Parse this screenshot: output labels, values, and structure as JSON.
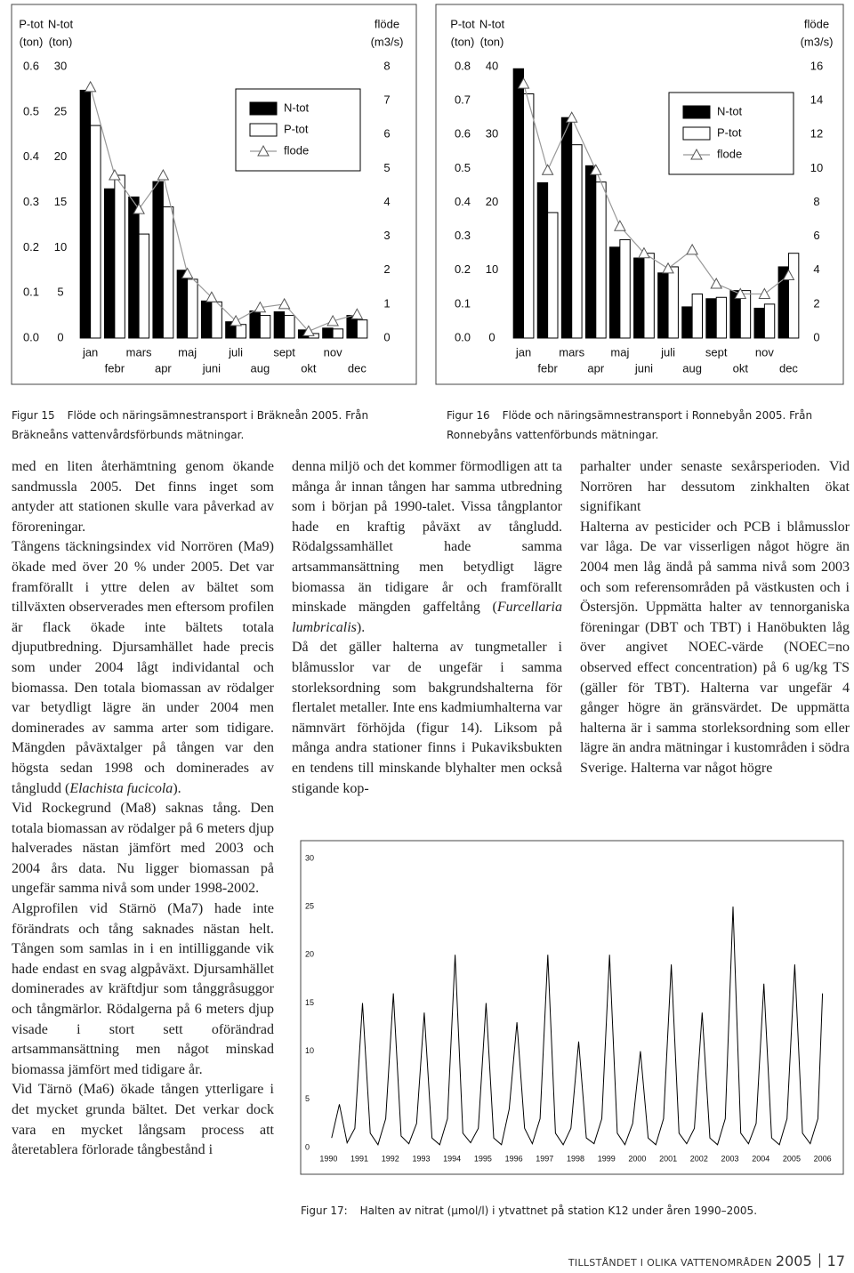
{
  "chart_data": [
    {
      "type": "bar",
      "categories": [
        "jan",
        "febr",
        "mars",
        "apr",
        "maj",
        "juni",
        "juli",
        "aug",
        "sept",
        "okt",
        "nov",
        "dec"
      ],
      "series": [
        {
          "name": "N-tot",
          "color": "#000000",
          "axis": "y2",
          "values": [
            27.4,
            16.5,
            15.6,
            17.3,
            7.5,
            4.1,
            1.8,
            3.0,
            2.9,
            0.9,
            1.1,
            2.5
          ]
        },
        {
          "name": "P-tot",
          "color": "#ffffff",
          "axis": "y",
          "values": [
            0.47,
            0.36,
            0.23,
            0.29,
            0.13,
            0.08,
            0.03,
            0.05,
            0.05,
            0.01,
            0.02,
            0.04
          ]
        },
        {
          "name": "flode",
          "color": "#999999",
          "axis": "y3",
          "type": "line",
          "marker": "triangle",
          "values": [
            7.4,
            4.8,
            3.8,
            4.8,
            1.9,
            1.2,
            0.5,
            0.9,
            1.0,
            0.2,
            0.5,
            0.7
          ]
        }
      ],
      "y_title": [
        "P-tot",
        "(ton)"
      ],
      "ylim": [
        0,
        0.6
      ],
      "yticks": [
        {
          "value": 0,
          "label": "0.0"
        },
        0.1,
        0.2,
        0.3,
        0.4,
        0.5,
        0.6
      ],
      "y2_title": [
        "N-tot",
        "(ton)"
      ],
      "y2lim": [
        0,
        30
      ],
      "y2ticks": [
        0,
        5,
        10,
        15,
        20,
        25,
        30
      ],
      "y3_title": [
        "flöde",
        "(m3/s)"
      ],
      "y3lim": [
        0,
        8
      ],
      "y3ticks": [
        0,
        1,
        2,
        3,
        4,
        5,
        6,
        7,
        8
      ],
      "figure": "Figur 15",
      "caption": "Flöde och näringsämnestransport i Bräkneån 2005. Från Bräkneåns vattenvårdsförbunds mätningar."
    },
    {
      "type": "bar",
      "categories": [
        "jan",
        "febr",
        "mars",
        "apr",
        "maj",
        "juni",
        "juli",
        "aug",
        "sept",
        "okt",
        "nov",
        "dec"
      ],
      "series": [
        {
          "name": "N-tot",
          "color": "#000000",
          "axis": "y2",
          "values": [
            39.7,
            22.9,
            32.5,
            25.4,
            13.4,
            11.8,
            9.6,
            4.6,
            5.8,
            7.0,
            4.4,
            10.5
          ]
        },
        {
          "name": "P-tot",
          "color": "#ffffff",
          "axis": "y",
          "values": [
            0.72,
            0.37,
            0.57,
            0.46,
            0.29,
            0.25,
            0.21,
            0.13,
            0.12,
            0.14,
            0.1,
            0.25
          ]
        },
        {
          "name": "flode",
          "color": "#999999",
          "axis": "y3",
          "type": "line",
          "marker": "triangle",
          "values": [
            15.0,
            9.9,
            13.0,
            9.9,
            6.6,
            5.0,
            4.1,
            5.2,
            3.2,
            2.6,
            2.6,
            3.7
          ]
        }
      ],
      "y_title": [
        "P-tot",
        "(ton)"
      ],
      "ylim": [
        0,
        0.8
      ],
      "yticks": [
        {
          "value": 0,
          "label": "0.0"
        },
        0.1,
        0.2,
        0.3,
        0.4,
        0.5,
        0.6,
        0.7,
        0.8
      ],
      "y2_title": [
        "N-tot",
        "(ton)"
      ],
      "y2lim": [
        0,
        40
      ],
      "y2ticks": [
        0,
        10,
        20,
        30,
        40
      ],
      "y3_title": [
        "flöde",
        "(m3/s)"
      ],
      "y3lim": [
        0,
        16
      ],
      "y3ticks": [
        0,
        2,
        4,
        6,
        8,
        10,
        12,
        14,
        16
      ],
      "figure": "Figur 16",
      "caption": "Flöde och näringsämnestransport i Ronnebyån 2005. Från Ronnebyåns vattenförbunds mätningar."
    },
    {
      "type": "line",
      "color": "#000000",
      "x": [
        1990.1,
        1990.35,
        1990.6,
        1990.85,
        1991.1,
        1991.35,
        1991.6,
        1991.85,
        1992.1,
        1992.35,
        1992.6,
        1992.85,
        1993.1,
        1993.35,
        1993.6,
        1993.85,
        1994.1,
        1994.35,
        1994.6,
        1994.85,
        1995.1,
        1995.35,
        1995.6,
        1995.85,
        1996.1,
        1996.35,
        1996.6,
        1996.85,
        1997.1,
        1997.35,
        1997.6,
        1997.85,
        1998.1,
        1998.35,
        1998.6,
        1998.85,
        1999.1,
        1999.35,
        1999.6,
        1999.85,
        2000.1,
        2000.35,
        2000.6,
        2000.85,
        2001.1,
        2001.35,
        2001.6,
        2001.85,
        2002.1,
        2002.35,
        2002.6,
        2002.85,
        2003.1,
        2003.35,
        2003.6,
        2003.85,
        2004.1,
        2004.35,
        2004.6,
        2004.85,
        2005.1,
        2005.35,
        2005.6,
        2005.85,
        2006.0
      ],
      "values": [
        1,
        4.5,
        0.5,
        2,
        15,
        1.5,
        0.3,
        3,
        16,
        1.2,
        0.4,
        2.5,
        14,
        1,
        0.3,
        3,
        20,
        1.5,
        0.5,
        2,
        15,
        1,
        0.3,
        4,
        13,
        2,
        0.4,
        3,
        20,
        1.5,
        0.3,
        2,
        11,
        1,
        0.4,
        3,
        20,
        1.5,
        0.3,
        2.5,
        10,
        1,
        0.3,
        3,
        19,
        1.5,
        0.4,
        2,
        14,
        1,
        0.3,
        3,
        25,
        1.5,
        0.4,
        2.5,
        17,
        1,
        0.3,
        3,
        19,
        1.5,
        0.4,
        3,
        16
      ],
      "xlim": [
        1989.5,
        2006.5
      ],
      "xticks": [
        1990,
        1991,
        1992,
        1993,
        1994,
        1995,
        1996,
        1997,
        1998,
        1999,
        2000,
        2001,
        2002,
        2003,
        2004,
        2005,
        2006
      ],
      "ylim": [
        0,
        30
      ],
      "yticks": [
        0,
        5,
        10,
        15,
        20,
        25,
        30
      ],
      "figure": "Figur 17:",
      "caption": "Halten av nitrat (µmol/l) i ytvattnet på station K12 under åren 1990–2005."
    }
  ],
  "columns": [
    {
      "paragraphs": [
        [
          "med en liten återhämtning genom ökande sandmussla 2005. Det finns inget som antyder att stationen skulle vara påverkad av föroreningar."
        ],
        [
          "Tångens täckningsindex vid Norrören (Ma9) ökade med över 20 % under 2005. Det var framförallt i yttre delen av bältet som tillväxten observerades men eftersom profilen är flack ökade inte bältets totala djuputbredning. Djursamhället hade precis som under 2004 lågt individantal och biomassa. Den totala biomassan av rödalger var betydligt lägre än under 2004 men dominerades av samma arter som tidigare. Mängden påväxtalger på tången var den högsta sedan 1998 och dominerades av tångludd (",
          {
            "text": "Elachista fucicola",
            "italic": true
          },
          ")."
        ],
        [
          "Vid Rockegrund (Ma8) saknas tång. Den totala biomassan av rödalger på 6 meters djup halverades nästan jämfört med 2003 och 2004 års data. Nu ligger biomassan på ungefär samma nivå som under 1998-2002."
        ],
        [
          "Algprofilen vid Stärnö (Ma7) hade inte förändrats och tång saknades nästan helt. Tången som samlas in i en intilliggande vik hade endast en svag algpåväxt. Djursamhället dominerades av kräftdjur som tånggråsuggor och tångmärlor. Rödalgerna på 6 meters djup visade i stort sett oförändrad artsammansättning men något minskad biomassa jämfört med tidigare år."
        ],
        [
          "Vid Tärnö (Ma6) ökade tången ytterligare i det mycket grunda bältet. Det verkar dock vara en mycket långsam process att återetablera förlorade tångbestånd i"
        ]
      ]
    },
    {
      "paragraphs": [
        [
          "denna miljö och det kommer förmodligen att ta många år innan tången har samma utbredning som i början på 1990-talet. Vissa tångplantor hade en kraftig påväxt av tångludd. Rödalgssamhället hade samma artsammansättning men betydligt lägre biomassa än tidigare år och framförallt minskade mängden gaffeltång (",
          {
            "text": "Furcellaria lumbricalis",
            "italic": true
          },
          ")."
        ],
        [
          "Då det gäller halterna av tungmetaller i blåmusslor var de ungefär i samma storleksordning som bakgrundshalterna för flertalet metaller. Inte ens kadmiumhalterna var nämnvärt förhöjda (figur 14). Liksom på många andra stationer finns i Pukaviksbukten en tendens till minskande blyhalter men också stigande kop-"
        ]
      ]
    },
    {
      "paragraphs": [
        [
          "parhalter under senaste sexårsperioden. Vid Norrören har dessutom zinkhalten ökat signifikant"
        ],
        [
          "Halterna av pesticider och PCB i blåmusslor var låga. De var visserligen något högre än 2004 men låg ändå på samma nivå som 2003 och som referensområden på västkusten och i Östersjön. Uppmätta halter av tennorganiska föreningar (DBT och TBT) i Hanöbukten låg över angivet NOEC-värde (NOEC=no observed effect concentration) på 6 ug/kg TS (gäller för TBT). Halterna var ungefär 4 gånger högre än gränsvärdet. De uppmätta halterna är i samma storleksordning som eller lägre än andra mätningar i kustområden i södra Sverige. Halterna var något högre"
        ]
      ]
    }
  ],
  "footer": {
    "title": "TILLSTÅNDET I OLIKA VATTENOMRÅDEN",
    "year": "2005",
    "page": "17"
  }
}
